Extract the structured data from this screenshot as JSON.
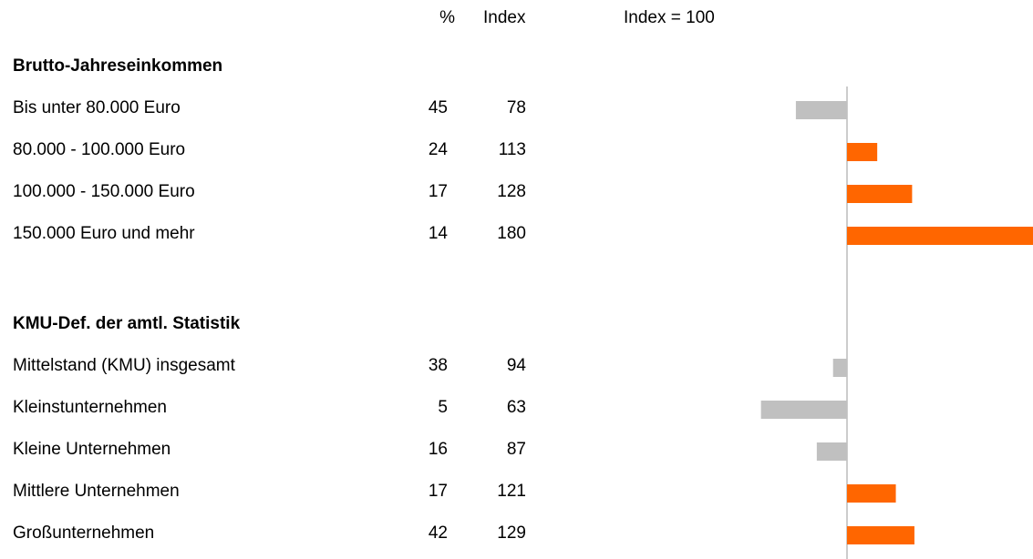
{
  "chart_data": {
    "type": "bar",
    "columns": [
      "%",
      "Index",
      "Index = 100"
    ],
    "reference": 100,
    "xlim": [
      60,
      180
    ],
    "colors": {
      "above": "#ff6600",
      "below": "#c0c0c0"
    },
    "groups": [
      {
        "title": "Brutto-Jahreseinkommen",
        "rows": [
          {
            "label": "Bis unter 80.000 Euro",
            "percent": 45,
            "index": 78
          },
          {
            "label": "80.000 - 100.000 Euro",
            "percent": 24,
            "index": 113
          },
          {
            "label": "100.000 - 150.000 Euro",
            "percent": 17,
            "index": 128
          },
          {
            "label": "150.000 Euro und mehr",
            "percent": 14,
            "index": 180
          }
        ]
      },
      {
        "title": "KMU-Def. der amtl. Statistik",
        "rows": [
          {
            "label": "Mittelstand (KMU) insgesamt",
            "percent": 38,
            "index": 94
          },
          {
            "label": "Kleinstunternehmen",
            "percent": 5,
            "index": 63
          },
          {
            "label": "Kleine Unternehmen",
            "percent": 16,
            "index": 87
          },
          {
            "label": "Mittlere Unternehmen",
            "percent": 17,
            "index": 121
          },
          {
            "label": "Großunternehmen",
            "percent": 42,
            "index": 129
          }
        ]
      }
    ]
  }
}
